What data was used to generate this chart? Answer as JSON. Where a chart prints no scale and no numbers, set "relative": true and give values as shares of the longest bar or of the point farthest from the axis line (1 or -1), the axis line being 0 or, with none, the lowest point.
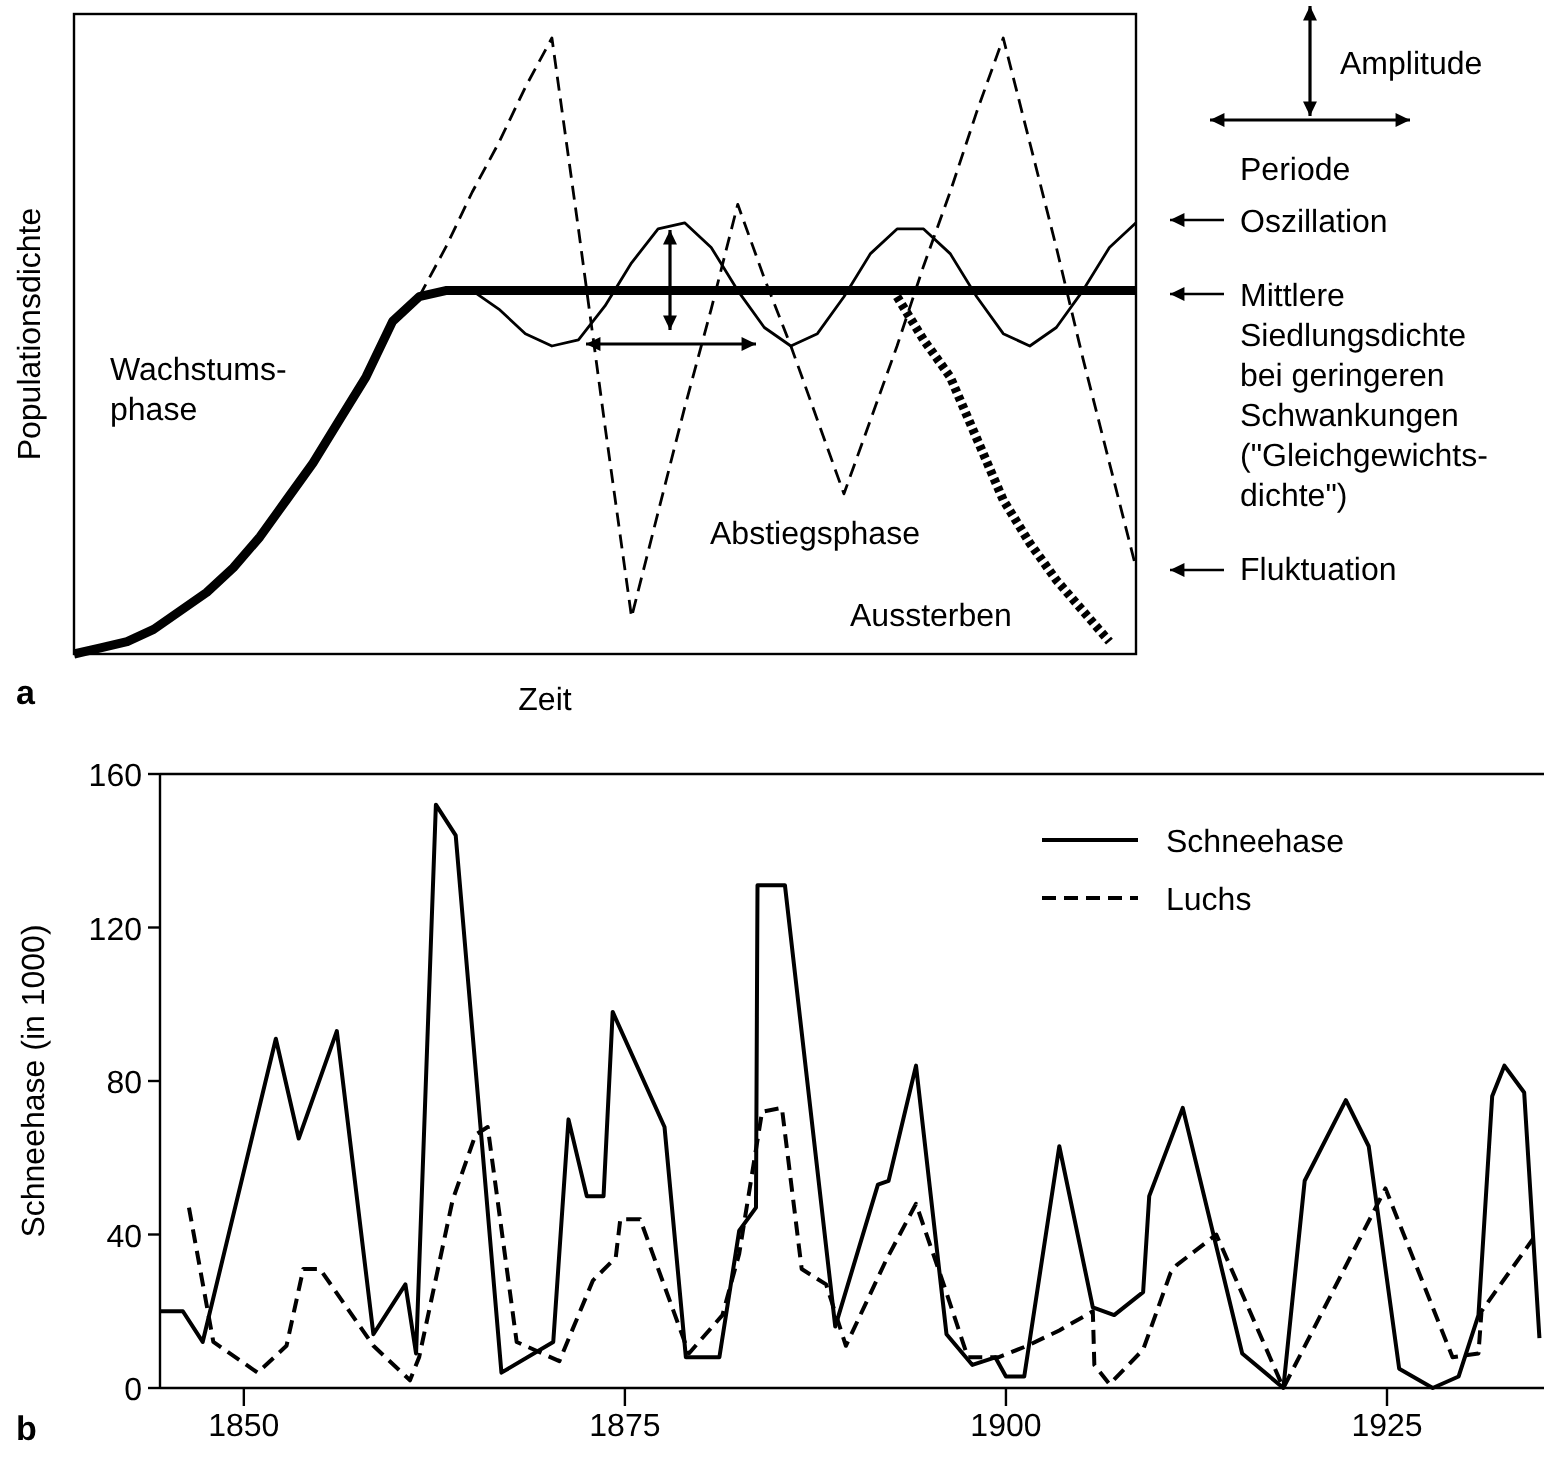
{
  "chart_data": [
    {
      "type": "line",
      "relative": true,
      "xlabel": "Zeit",
      "ylabel": "Populationsdichte",
      "categories": [
        null,
        null,
        null,
        null,
        null,
        null,
        null,
        null,
        null,
        null,
        null,
        null,
        null,
        null,
        null,
        null,
        null,
        null,
        null,
        null,
        null,
        null,
        null,
        null,
        null,
        null,
        null,
        null,
        null,
        null,
        null,
        null,
        null,
        null,
        null,
        null,
        null,
        null,
        null,
        null,
        null
      ],
      "series": [
        {
          "color": "#000000",
          "line_style": "solid",
          "values": [
            0,
            0.01,
            0.02,
            0.04,
            0.07,
            0.1,
            0.14,
            0.19,
            0.25,
            0.31,
            0.38,
            0.45,
            0.54,
            0.58,
            0.59,
            0.59,
            0.59,
            0.59,
            0.59,
            0.59,
            0.59,
            0.59,
            0.59,
            0.59,
            0.59,
            0.59,
            0.59,
            0.59,
            0.59,
            0.59,
            0.59,
            0.59,
            0.59,
            0.59,
            0.59,
            0.59,
            0.59,
            0.59,
            0.59,
            0.59,
            0.59
          ]
        },
        {
          "color": "#000000",
          "line_style": "solid",
          "values": [
            null,
            null,
            null,
            null,
            null,
            null,
            null,
            null,
            null,
            null,
            null,
            null,
            null,
            null,
            null,
            0.59,
            0.56,
            0.52,
            0.5,
            0.51,
            0.565,
            0.635,
            0.69,
            0.7,
            0.66,
            0.59,
            0.53,
            0.5,
            0.52,
            0.58,
            0.65,
            0.69,
            0.69,
            0.65,
            0.58,
            0.52,
            0.5,
            0.53,
            0.59,
            0.66,
            0.7
          ]
        },
        {
          "color": "#000000",
          "line_style": "dashed",
          "values": [
            null,
            null,
            null,
            null,
            null,
            null,
            null,
            null,
            null,
            null,
            null,
            null,
            null,
            0.58,
            0.66,
            0.75,
            0.83,
            0.92,
            1.0,
            0.69,
            0.37,
            0.06,
            0.23,
            0.4,
            0.56,
            0.73,
            0.61,
            0.5,
            0.38,
            0.26,
            0.38,
            0.5,
            0.63,
            0.75,
            0.88,
            1.0,
            0.83,
            0.66,
            0.48,
            0.31,
            0.14
          ]
        },
        {
          "color": "#000000",
          "line_style": "dotted",
          "values": [
            null,
            null,
            null,
            null,
            null,
            null,
            null,
            null,
            null,
            null,
            null,
            null,
            null,
            null,
            null,
            null,
            null,
            null,
            null,
            null,
            null,
            null,
            null,
            null,
            null,
            null,
            null,
            null,
            null,
            null,
            null,
            0.58,
            0.51,
            0.45,
            0.35,
            0.25,
            0.18,
            0.12,
            0.07,
            0.02,
            null
          ]
        }
      ],
      "annotations": [
        "a",
        "Wachstums-\nphase",
        "Abstiegsphase",
        "Aussterben",
        "Amplitude",
        "Periode",
        "Oszillation",
        "Mittlere\nSiedlungsdichte\nbei geringeren\nSchwankungen\n(\"Gleichgewichts-\ndichte\")",
        "Fluktuation"
      ]
    },
    {
      "type": "line",
      "ylabel": "Schneehase (in 1000)",
      "xlim": [
        1844.5,
        1935.3
      ],
      "xticks": [
        1850,
        1875,
        1900,
        1925
      ],
      "ylim": [
        0,
        160
      ],
      "yticks": [
        0,
        40,
        80,
        120,
        160
      ],
      "legend": "top right",
      "series": [
        {
          "name": "Schneehase",
          "color": "#000000",
          "line_style": "solid",
          "x": [
            1844.5,
            1846,
            1847.3,
            1852.1,
            1853.6,
            1856.1,
            1858.5,
            1860.6,
            1861.3,
            1862.6,
            1863.9,
            1866.9,
            1870.3,
            1871.3,
            1872.5,
            1873.6,
            1874.2,
            1877.6,
            1879,
            1881.2,
            1882.5,
            1883.6,
            1883.7,
            1885.5,
            1888.8,
            1891.6,
            1892.3,
            1894.1,
            1896.1,
            1897.8,
            1899.3,
            1900,
            1901.2,
            1903.5,
            1905.7,
            1907.1,
            1909,
            1909.4,
            1911.6,
            1915.5,
            1918.2,
            1919.6,
            1922.3,
            1923.8,
            1925.8,
            1928,
            1929.7,
            1931,
            1931.9,
            1932.7,
            1934,
            1935
          ],
          "values": [
            20,
            20,
            12,
            91,
            65,
            93,
            14,
            27,
            9,
            152,
            144,
            4,
            12,
            70,
            50,
            50,
            98,
            68,
            8,
            8,
            41,
            47,
            131,
            131,
            16,
            53,
            54,
            84,
            14,
            6,
            8,
            3,
            3,
            63,
            21,
            19,
            25,
            50,
            73,
            9,
            0,
            54,
            75,
            63,
            5,
            0,
            3,
            19,
            76,
            84,
            77,
            13
          ]
        },
        {
          "name": "Luchs",
          "color": "#000000",
          "line_style": "dashed",
          "x": [
            1846.4,
            1848,
            1850.9,
            1852.8,
            1853.9,
            1855,
            1858.5,
            1860.9,
            1861.5,
            1863.7,
            1865.2,
            1866,
            1867.9,
            1870.7,
            1872.9,
            1874.4,
            1874.7,
            1876,
            1879.2,
            1881.4,
            1882.5,
            1884,
            1885.3,
            1886.6,
            1888.2,
            1889.5,
            1892.1,
            1894.1,
            1896,
            1897.5,
            1899.5,
            1901.4,
            1903.5,
            1905.7,
            1905.8,
            1906.8,
            1909,
            1910.8,
            1911.2,
            1913.8,
            1918.2,
            1924.9,
            1929.3,
            1931,
            1931.2,
            1934.6
          ],
          "values": [
            47,
            12,
            4,
            11,
            31,
            31,
            11,
            2,
            8,
            49,
            66,
            68,
            12,
            7,
            28,
            34,
            44,
            44,
            9,
            19,
            35,
            72,
            73,
            31,
            27,
            11,
            33,
            48,
            26,
            8,
            8,
            11,
            15,
            20,
            6,
            1,
            10,
            30,
            32,
            40,
            0,
            52,
            8,
            9,
            20,
            39
          ]
        }
      ],
      "annotations": [
        "b"
      ]
    }
  ]
}
